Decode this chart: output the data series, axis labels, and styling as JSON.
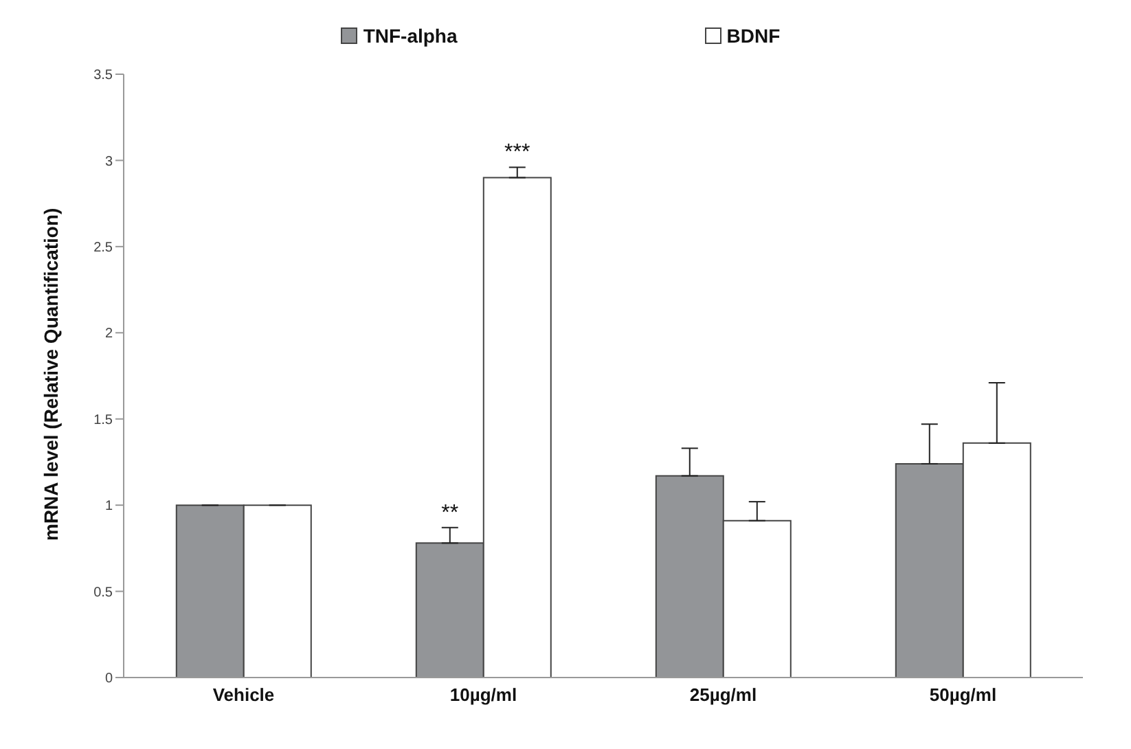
{
  "chart_data": {
    "type": "bar",
    "ylabel": "mRNA level (Relative Quantification)",
    "categories": [
      "Vehicle",
      "10µg/ml",
      "25µg/ml",
      "50µg/ml"
    ],
    "series": [
      {
        "name": "TNF-alpha",
        "color": "#939598",
        "values": [
          1,
          0.78,
          1.17,
          1.24
        ],
        "errors": [
          null,
          [
            0.78,
            0.87
          ],
          [
            1.17,
            1.33
          ],
          [
            1.24,
            1.47
          ]
        ]
      },
      {
        "name": "BDNF",
        "color": "#ffffff",
        "values": [
          1,
          2.9,
          0.91,
          1.36
        ],
        "errors": [
          null,
          [
            2.9,
            2.96
          ],
          [
            0.91,
            1.02
          ],
          [
            1.36,
            1.71
          ]
        ]
      }
    ],
    "ylim": [
      0,
      3.5
    ],
    "yticks": [
      0,
      0.5,
      1,
      1.5,
      2,
      2.5,
      3,
      3.5
    ],
    "grid": false,
    "legend": "top",
    "annotations": [
      {
        "text": "**",
        "x": "10µg/ml",
        "y": 0.78
      },
      {
        "text": "***",
        "x": "10µg/ml",
        "y": 2.9
      }
    ]
  }
}
